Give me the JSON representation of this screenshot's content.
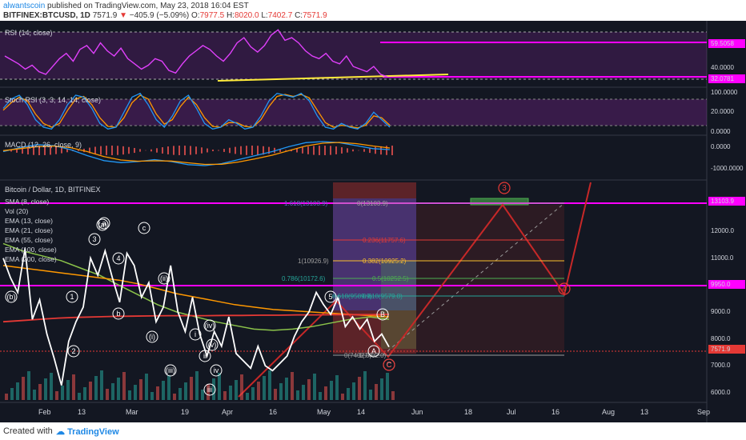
{
  "header": {
    "author": "alwantscoin",
    "published": "published on TradingView.com, May 23, 2018 16:04 EST",
    "symbol": "BITFINEX:BTCUSD, 1D",
    "last": "7571.9",
    "change": "−405.9 (−5.09%)",
    "open_label": "O:",
    "open": "7977.5",
    "high_label": "H:",
    "high": "8020.0",
    "low_label": "L:",
    "low": "7402.7",
    "close_label": "C:",
    "close": "7571.9"
  },
  "footer": {
    "created_with": "Created with",
    "logo": "TradingView"
  },
  "colors": {
    "background": "#131722",
    "pane_border": "#363a45",
    "rsi": "#e040fb",
    "stoch_k": "#2196f3",
    "stoch_d": "#ff9800",
    "price_line": "#e53935",
    "fib_magenta": "#ff00ff",
    "trend_yellow": "#ffeb3b"
  },
  "chart_data": [
    {
      "type": "line",
      "pane": "rsi",
      "title": "RSI (14, close)",
      "ylim": [
        28,
        72
      ],
      "axis_labels": [
        "59.5058",
        "40.0000",
        "32.0781"
      ],
      "levels": [
        59.5058,
        32.0781
      ],
      "series": [
        {
          "values": [
            50,
            47,
            44,
            40,
            43,
            38,
            36,
            42,
            48,
            52,
            46,
            55,
            58,
            52,
            60,
            54,
            50,
            56,
            48,
            44,
            40,
            43,
            48,
            46,
            39,
            37,
            44,
            50,
            54,
            58,
            55,
            50,
            46,
            52,
            60,
            64,
            57,
            53,
            58,
            66,
            70,
            62,
            64,
            60,
            54,
            50,
            48,
            52,
            46,
            44,
            50,
            42,
            40,
            38,
            42,
            36,
            34
          ]
        }
      ]
    },
    {
      "type": "line",
      "pane": "stoch_rsi",
      "title": "Stoch RSI (3, 3, 14, 14, close)",
      "ylim": [
        -5,
        110
      ],
      "axis_labels": [
        "100.0000",
        "20.0000",
        "0.0000"
      ],
      "series": [
        {
          "values": [
            60,
            85,
            95,
            70,
            30,
            10,
            5,
            30,
            70,
            95,
            90,
            60,
            20,
            5,
            10,
            50,
            90,
            100,
            70,
            30,
            10,
            40,
            80,
            95,
            60,
            20,
            5,
            10,
            30,
            20,
            5,
            10,
            40,
            80,
            100,
            95,
            90,
            100,
            80,
            40,
            10,
            5,
            20,
            10,
            5,
            20,
            50,
            30,
            10
          ]
        },
        {
          "values": [
            55,
            75,
            90,
            80,
            45,
            20,
            10,
            20,
            55,
            85,
            92,
            70,
            35,
            12,
            10,
            35,
            75,
            95,
            85,
            45,
            18,
            30,
            65,
            90,
            70,
            35,
            12,
            10,
            22,
            22,
            12,
            10,
            30,
            65,
            92,
            97,
            92,
            97,
            88,
            55,
            22,
            10,
            15,
            12,
            8,
            15,
            40,
            35,
            15
          ]
        }
      ]
    },
    {
      "type": "line",
      "pane": "macd",
      "title": "MACD (12, 26, close, 9)",
      "ylim": [
        -1500,
        500
      ],
      "axis_labels": [
        "0.0000",
        "-1000.0000"
      ],
      "series": [
        {
          "values": [
            -200,
            0,
            150,
            100,
            -100,
            -400,
            -650,
            -750,
            -700,
            -600,
            -700,
            -850,
            -900,
            -800,
            -600,
            -400,
            -200,
            50,
            250,
            300,
            250,
            100,
            -50,
            -100
          ]
        },
        {
          "values": [
            -150,
            -50,
            50,
            80,
            0,
            -200,
            -450,
            -620,
            -680,
            -660,
            -670,
            -760,
            -840,
            -830,
            -720,
            -560,
            -380,
            -150,
            80,
            220,
            260,
            200,
            80,
            -20
          ]
        }
      ]
    },
    {
      "type": "line",
      "pane": "price",
      "title": "Bitcoin / Dollar, 1D, BITFINEX",
      "ylim": [
        5400,
        14300
      ],
      "axis_labels": [
        "13103.9",
        "12000.0",
        "11000.0",
        "9950.0",
        "9000.0",
        "8000.0",
        "7571.9",
        "7000.0",
        "6000.0"
      ],
      "x_labels": [
        "Feb",
        "13",
        "Mar",
        "19",
        "Apr",
        "16",
        "May",
        "14",
        "Jun",
        "18",
        "Jul",
        "16",
        "Aug",
        "13",
        "Sep"
      ],
      "legend": [
        "SMA (8, close)",
        "Vol (20)",
        "EMA (13, close)",
        "EMA (21, close)",
        "EMA (55, close)",
        "EMA (100, close)",
        "EMA (200, close)"
      ],
      "fib_levels": [
        {
          "ratio": "1.618",
          "label": "1.618(13103.9)",
          "price": 13103.9
        },
        {
          "ratio": "0",
          "label": "0(13103.9)",
          "price": 13103.9
        },
        {
          "ratio": "0.236",
          "label": "0.236(11757.6)",
          "price": 11757.6
        },
        {
          "ratio": "1",
          "label": "1(10926.9)",
          "price": 10926.9
        },
        {
          "ratio": "0.382",
          "label": "0.382(10925.2)",
          "price": 10925.2
        },
        {
          "ratio": "0.786",
          "label": "0.786(10172.6)",
          "price": 10172.6
        },
        {
          "ratio": "0.5",
          "label": "0.5(10252.5)",
          "price": 10252.5
        },
        {
          "ratio": "0.618",
          "label": "0.618(9589.9)",
          "price": 9589.9
        },
        {
          "ratio": "0.618",
          "label": "0.618(9579.8)",
          "price": 9579.8
        },
        {
          "ratio": "0",
          "label": "0(7402.0)",
          "price": 7402.0
        },
        {
          "ratio": "1",
          "label": "1(7402.0)",
          "price": 7402.0
        }
      ],
      "wave_labels": [
        "(b)",
        "(a)",
        "(i)",
        "(ii)",
        "(iii)",
        "(iv)",
        "(v)",
        "i",
        "ii",
        "iii",
        "iv",
        "B",
        "A",
        "1",
        "2",
        "3",
        "4",
        "5",
        "a",
        "b",
        "c",
        "C"
      ],
      "forecast_points": [
        "3",
        "4",
        "C"
      ],
      "series": [
        {
          "name": "Price",
          "values": [
            11200,
            10400,
            9800,
            11600,
            8700,
            9500,
            8100,
            7100,
            6000,
            7800,
            8600,
            9200,
            11200,
            10500,
            11500,
            10400,
            9400,
            11400,
            10900,
            9600,
            10200,
            8600,
            9200,
            10900,
            9000,
            8200,
            9600,
            8100,
            7200,
            8200,
            7600,
            8800,
            7300,
            7000,
            6700,
            7600,
            6800,
            6600,
            6900,
            7200,
            8000,
            8600,
            9000,
            9800,
            9300,
            8900,
            9600,
            8400,
            8800,
            8300,
            8700,
            7800,
            8100,
            7570
          ]
        },
        {
          "name": "EMA (200, close)",
          "values": [
            8600,
            8650,
            8700,
            8750,
            8780,
            8800,
            8820,
            8830,
            8840,
            8850,
            8850,
            8850,
            8860,
            8860,
            8870,
            8870,
            8880,
            8880,
            8890,
            8890,
            8890,
            8900
          ]
        },
        {
          "name": "EMA (100, close)",
          "values": [
            10900,
            10800,
            10700,
            10600,
            10500,
            10400,
            10300,
            10150,
            9950,
            9750,
            9600,
            9450,
            9300,
            9200,
            9100,
            9050,
            9000,
            8950,
            8900,
            8850,
            8800
          ]
        },
        {
          "name": "EMA (55, close)",
          "values": [
            11800,
            11500,
            11300,
            11100,
            10800,
            10500,
            10100,
            9700,
            9300,
            9000,
            8800,
            8600,
            8450,
            8300,
            8250,
            8300,
            8400,
            8550,
            8700,
            8800,
            8700
          ]
        }
      ]
    }
  ]
}
